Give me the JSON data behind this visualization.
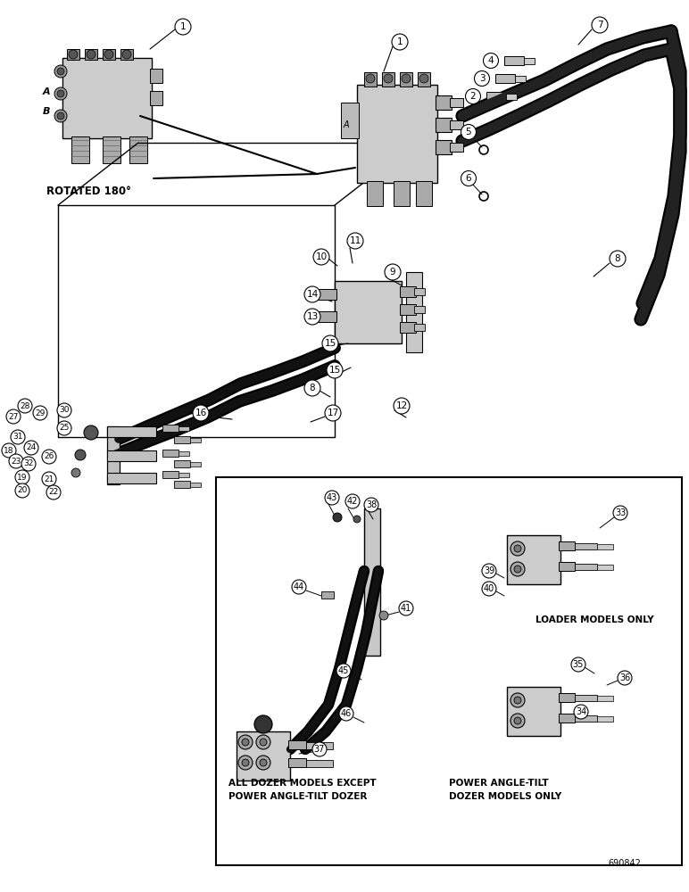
{
  "background_color": "#ffffff",
  "page_number": "690842",
  "fig_width": 7.72,
  "fig_height": 10.0,
  "dpi": 100,
  "labels": {
    "rotated_180": "ROTATED 180°",
    "loader_models": "LOADER MODELS ONLY",
    "all_dozer_line1": "ALL DOZER MODELS EXCEPT",
    "all_dozer_line2": "POWER ANGLE-TILT DOZER",
    "power_angle_line1": "POWER ANGLE-TILT",
    "power_angle_line2": "DOZER MODELS ONLY"
  },
  "A_label": "A",
  "B_label": "B"
}
